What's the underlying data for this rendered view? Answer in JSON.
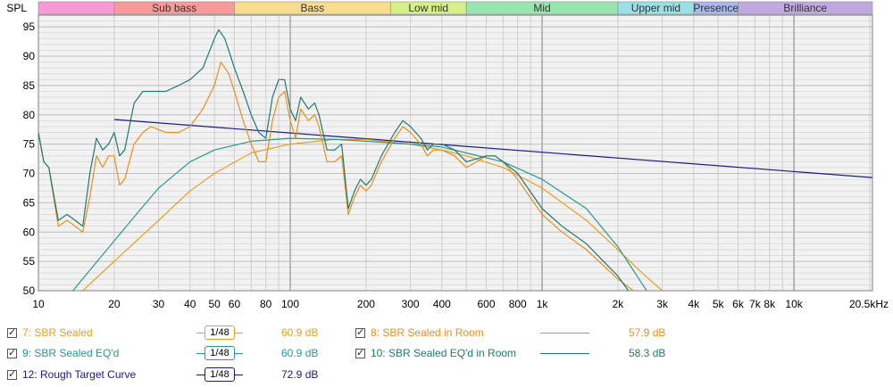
{
  "chart_data": {
    "type": "line",
    "ylabel": "SPL",
    "x_scale": "log",
    "xlim": [
      10,
      20500
    ],
    "ylim": [
      50,
      97
    ],
    "grid": true,
    "x_ticks": [
      {
        "v": 10,
        "label": "10"
      },
      {
        "v": 20,
        "label": "20"
      },
      {
        "v": 30,
        "label": "30"
      },
      {
        "v": 40,
        "label": "40"
      },
      {
        "v": 50,
        "label": "50"
      },
      {
        "v": 60,
        "label": "60"
      },
      {
        "v": 80,
        "label": "80"
      },
      {
        "v": 100,
        "label": "100"
      },
      {
        "v": 200,
        "label": "200"
      },
      {
        "v": 300,
        "label": "300"
      },
      {
        "v": 400,
        "label": "400"
      },
      {
        "v": 600,
        "label": "600"
      },
      {
        "v": 800,
        "label": "800"
      },
      {
        "v": 1000,
        "label": "1k"
      },
      {
        "v": 2000,
        "label": "2k"
      },
      {
        "v": 3000,
        "label": "3k"
      },
      {
        "v": 4000,
        "label": "4k"
      },
      {
        "v": 5000,
        "label": "5k"
      },
      {
        "v": 6000,
        "label": "6k"
      },
      {
        "v": 7000,
        "label": "7k"
      },
      {
        "v": 8000,
        "label": "8k"
      },
      {
        "v": 10000,
        "label": "10k"
      },
      {
        "v": 20500,
        "label": "20.5kHz"
      }
    ],
    "y_ticks": [
      50,
      55,
      60,
      65,
      70,
      75,
      80,
      85,
      90,
      95
    ],
    "bands": [
      {
        "label": "",
        "from": 10,
        "to": 20,
        "color": "#f79ad7"
      },
      {
        "label": "Sub bass",
        "from": 20,
        "to": 60,
        "color": "#f79a9a"
      },
      {
        "label": "Bass",
        "from": 60,
        "to": 250,
        "color": "#fadc90"
      },
      {
        "label": "Low mid",
        "from": 250,
        "to": 500,
        "color": "#d5f08a"
      },
      {
        "label": "Mid",
        "from": 500,
        "to": 2000,
        "color": "#9ae6b0"
      },
      {
        "label": "Upper mid",
        "from": 2000,
        "to": 4000,
        "color": "#9ae0e6"
      },
      {
        "label": "Presence",
        "from": 4000,
        "to": 6000,
        "color": "#a8b8ec"
      },
      {
        "label": "Brilliance",
        "from": 6000,
        "to": 20500,
        "color": "#c0a8e0"
      }
    ],
    "series": [
      {
        "name": "7: SBR Sealed",
        "color": "#e8a020",
        "value_label": "60.9 dB",
        "smoothing": "1/48",
        "points": [
          [
            15,
            50
          ],
          [
            20,
            55
          ],
          [
            30,
            62
          ],
          [
            40,
            67
          ],
          [
            50,
            70
          ],
          [
            70,
            73.5
          ],
          [
            100,
            75
          ],
          [
            150,
            75.8
          ],
          [
            200,
            75.8
          ],
          [
            300,
            75
          ],
          [
            400,
            74
          ],
          [
            500,
            73
          ],
          [
            700,
            71
          ],
          [
            1000,
            67.5
          ],
          [
            1500,
            62
          ],
          [
            2000,
            57
          ],
          [
            2500,
            53
          ],
          [
            3000,
            50
          ]
        ]
      },
      {
        "name": "9: SBR Sealed EQ'd",
        "color": "#2a9a90",
        "value_label": "60.9 dB",
        "smoothing": "1/48",
        "points": [
          [
            13.7,
            50
          ],
          [
            20,
            58.5
          ],
          [
            25,
            63.5
          ],
          [
            30,
            67.5
          ],
          [
            40,
            72
          ],
          [
            50,
            74
          ],
          [
            70,
            75.5
          ],
          [
            100,
            76
          ],
          [
            150,
            75.8
          ],
          [
            200,
            75.5
          ],
          [
            300,
            75
          ],
          [
            400,
            74.5
          ],
          [
            500,
            73.5
          ],
          [
            700,
            72
          ],
          [
            1000,
            69
          ],
          [
            1500,
            64
          ],
          [
            2000,
            57.5
          ],
          [
            2600,
            50
          ]
        ]
      },
      {
        "name": "8: SBR Sealed in Room",
        "color": "#e8901a",
        "value_label": "57.9 dB",
        "points": [
          [
            10,
            77
          ],
          [
            10.5,
            72
          ],
          [
            11,
            71
          ],
          [
            12,
            61
          ],
          [
            13,
            62
          ],
          [
            14,
            61
          ],
          [
            15,
            60
          ],
          [
            16,
            66
          ],
          [
            17,
            73
          ],
          [
            18,
            71
          ],
          [
            19,
            73
          ],
          [
            20,
            73
          ],
          [
            21,
            68
          ],
          [
            22,
            69
          ],
          [
            24,
            75
          ],
          [
            26,
            77
          ],
          [
            28,
            78
          ],
          [
            32,
            77
          ],
          [
            36,
            77
          ],
          [
            40,
            78
          ],
          [
            45,
            81
          ],
          [
            50,
            85
          ],
          [
            53,
            89
          ],
          [
            57,
            87
          ],
          [
            60,
            84
          ],
          [
            65,
            79
          ],
          [
            70,
            75
          ],
          [
            75,
            72
          ],
          [
            80,
            72
          ],
          [
            85,
            79
          ],
          [
            90,
            83
          ],
          [
            95,
            84
          ],
          [
            100,
            79
          ],
          [
            105,
            76
          ],
          [
            110,
            81
          ],
          [
            118,
            79
          ],
          [
            125,
            80
          ],
          [
            130,
            78
          ],
          [
            140,
            72
          ],
          [
            150,
            72
          ],
          [
            160,
            73
          ],
          [
            170,
            63
          ],
          [
            180,
            66
          ],
          [
            190,
            68
          ],
          [
            200,
            67
          ],
          [
            210,
            68
          ],
          [
            230,
            72
          ],
          [
            260,
            76
          ],
          [
            280,
            78
          ],
          [
            300,
            77
          ],
          [
            330,
            75
          ],
          [
            350,
            73
          ],
          [
            370,
            74
          ],
          [
            400,
            74
          ],
          [
            450,
            73
          ],
          [
            500,
            71
          ],
          [
            550,
            72
          ],
          [
            600,
            73
          ],
          [
            650,
            73
          ],
          [
            700,
            72
          ],
          [
            800,
            69
          ],
          [
            1000,
            63
          ],
          [
            1200,
            60
          ],
          [
            1500,
            57
          ],
          [
            2000,
            52
          ],
          [
            2300,
            50
          ]
        ]
      },
      {
        "name": "10: SBR Sealed EQ'd in Room",
        "color": "#1f7a72",
        "value_label": "58.3 dB",
        "points": [
          [
            10,
            77
          ],
          [
            10.5,
            72
          ],
          [
            11,
            71
          ],
          [
            12,
            62
          ],
          [
            13,
            63
          ],
          [
            14,
            62
          ],
          [
            15,
            61
          ],
          [
            16,
            70
          ],
          [
            17,
            76
          ],
          [
            18,
            74
          ],
          [
            19,
            75
          ],
          [
            20,
            77
          ],
          [
            21,
            73
          ],
          [
            22,
            74
          ],
          [
            24,
            82
          ],
          [
            26,
            84
          ],
          [
            28,
            84
          ],
          [
            32,
            84
          ],
          [
            36,
            85
          ],
          [
            40,
            86
          ],
          [
            45,
            88
          ],
          [
            50,
            93
          ],
          [
            52,
            94.5
          ],
          [
            55,
            93
          ],
          [
            60,
            88
          ],
          [
            65,
            84
          ],
          [
            70,
            80
          ],
          [
            75,
            77
          ],
          [
            80,
            76
          ],
          [
            85,
            83
          ],
          [
            90,
            86
          ],
          [
            95,
            86
          ],
          [
            100,
            81
          ],
          [
            105,
            79
          ],
          [
            110,
            83
          ],
          [
            118,
            81
          ],
          [
            125,
            82
          ],
          [
            130,
            80
          ],
          [
            140,
            74
          ],
          [
            150,
            74
          ],
          [
            160,
            75
          ],
          [
            170,
            64
          ],
          [
            180,
            67
          ],
          [
            190,
            69
          ],
          [
            200,
            68
          ],
          [
            210,
            69
          ],
          [
            230,
            73
          ],
          [
            260,
            77
          ],
          [
            280,
            79
          ],
          [
            300,
            78
          ],
          [
            330,
            76
          ],
          [
            350,
            74
          ],
          [
            370,
            75
          ],
          [
            400,
            75
          ],
          [
            450,
            74
          ],
          [
            500,
            72
          ],
          [
            550,
            72.5
          ],
          [
            600,
            73
          ],
          [
            650,
            73
          ],
          [
            700,
            72
          ],
          [
            800,
            70
          ],
          [
            1000,
            64
          ],
          [
            1200,
            61
          ],
          [
            1500,
            58
          ],
          [
            2000,
            52.5
          ],
          [
            2200,
            50
          ]
        ]
      },
      {
        "name": "12: Rough Target Curve",
        "color": "#1a1a8a",
        "value_label": "72.9 dB",
        "smoothing": "1/48",
        "points": [
          [
            20,
            79.2
          ],
          [
            20500,
            69.3
          ]
        ]
      }
    ]
  }
}
